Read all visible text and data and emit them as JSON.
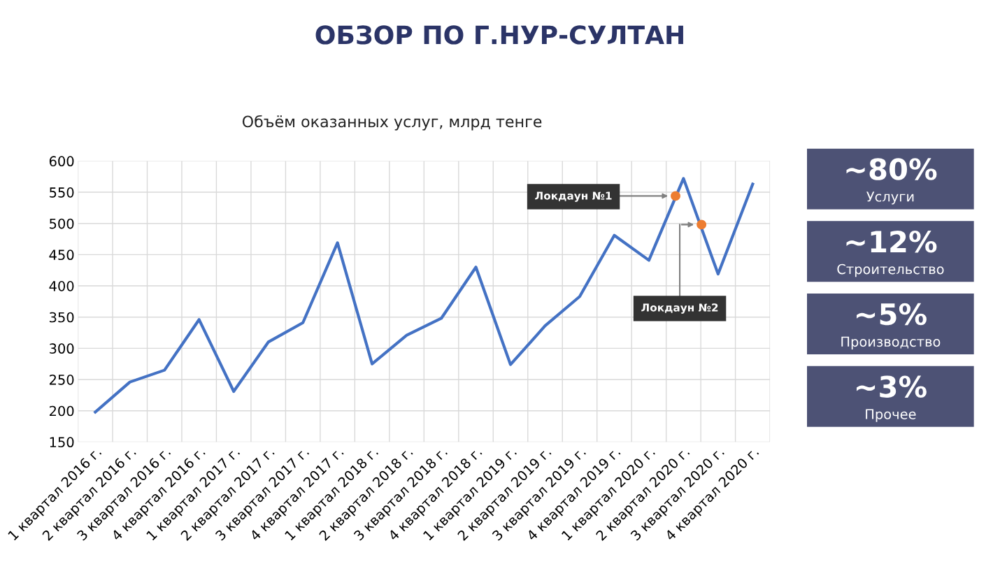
{
  "chart_data": [
    {
      "type": "line",
      "title": "ОБЗОР ПО Г.НУР-СУЛТАН",
      "subtitle": "Объём оказанных услуг, млрд тенге",
      "categories": [
        "1 квартал 2016 г.",
        "2 квартал 2016 г.",
        "3 квартал 2016 г.",
        "4 квартал 2016 г.",
        "1 квартал 2017 г.",
        "2 квартал 2017 г.",
        "3 квартал 2017 г.",
        "4 квартал 2017 г.",
        "1 квартал 2018 г.",
        "2 квартал 2018 г.",
        "3 квартал 2018 г.",
        "4 квартал 2018 г.",
        "1 квартал 2019 г.",
        "2 квартал 2019 г.",
        "3 квартал 2019 г.",
        "4 квартал 2019 г.",
        "1 квартал 2020 г.",
        "2 квартал 2020 г.",
        "3 квартал 2020 г.",
        "4 квартал 2020 г."
      ],
      "series": [
        {
          "color": "#4472c4",
          "values": [
            198,
            246,
            265,
            346,
            231,
            310,
            341,
            469,
            275,
            321,
            348,
            430,
            274,
            336,
            383,
            481,
            441,
            572,
            419,
            563
          ]
        }
      ],
      "annotations": [
        "Локдаун №1",
        "Локдаун №2"
      ],
      "ylim": [
        150,
        600
      ],
      "yticks": [
        150,
        200,
        250,
        300,
        350,
        400,
        450,
        500,
        550,
        600
      ],
      "grid": true,
      "marker": "none",
      "line_style": "solid"
    },
    {
      "type": "other",
      "annotations": [
        "~80%",
        "Услуги",
        "~12%",
        "Строительство",
        "~5%",
        "Производство",
        "~3%",
        "Прочее"
      ]
    }
  ]
}
